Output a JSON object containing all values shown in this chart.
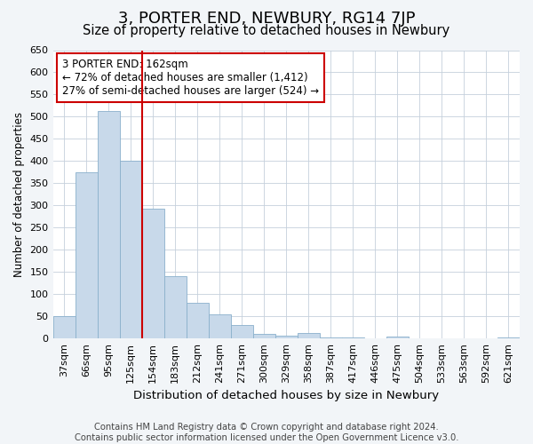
{
  "title": "3, PORTER END, NEWBURY, RG14 7JP",
  "subtitle": "Size of property relative to detached houses in Newbury",
  "xlabel": "Distribution of detached houses by size in Newbury",
  "ylabel": "Number of detached properties",
  "categories": [
    "37sqm",
    "66sqm",
    "95sqm",
    "125sqm",
    "154sqm",
    "183sqm",
    "212sqm",
    "241sqm",
    "271sqm",
    "300sqm",
    "329sqm",
    "358sqm",
    "387sqm",
    "417sqm",
    "446sqm",
    "475sqm",
    "504sqm",
    "533sqm",
    "563sqm",
    "592sqm",
    "621sqm"
  ],
  "values": [
    50,
    375,
    513,
    400,
    293,
    140,
    80,
    55,
    30,
    10,
    7,
    12,
    3,
    3,
    0,
    5,
    0,
    0,
    0,
    0,
    3
  ],
  "bar_color": "#c8d9ea",
  "bar_edge_color": "#8ab0cc",
  "vline_x_index": 4,
  "vline_color": "#cc0000",
  "annotation_text": "3 PORTER END: 162sqm\n← 72% of detached houses are smaller (1,412)\n27% of semi-detached houses are larger (524) →",
  "annotation_box_color": "#ffffff",
  "annotation_box_edge_color": "#cc0000",
  "ylim": [
    0,
    650
  ],
  "yticks": [
    0,
    50,
    100,
    150,
    200,
    250,
    300,
    350,
    400,
    450,
    500,
    550,
    600,
    650
  ],
  "footer_line1": "Contains HM Land Registry data © Crown copyright and database right 2024.",
  "footer_line2": "Contains public sector information licensed under the Open Government Licence v3.0.",
  "background_color": "#f2f5f8",
  "plot_background_color": "#ffffff",
  "grid_color": "#c5d0dc",
  "title_fontsize": 13,
  "subtitle_fontsize": 10.5,
  "xlabel_fontsize": 9.5,
  "ylabel_fontsize": 8.5,
  "tick_fontsize": 8,
  "annotation_fontsize": 8.5,
  "footer_fontsize": 7.2
}
